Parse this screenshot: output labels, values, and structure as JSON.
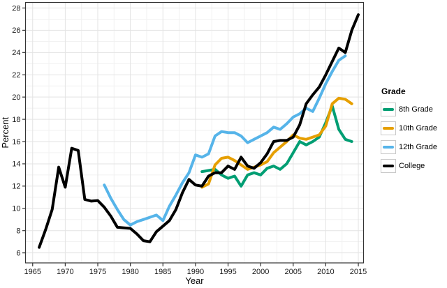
{
  "legend": {
    "title": "Grade",
    "items": [
      {
        "label": "8th Grade",
        "color": "#009E73"
      },
      {
        "label": "10th Grade",
        "color": "#E69F00"
      },
      {
        "label": "12th Grade",
        "color": "#56B4E9"
      },
      {
        "label": "College",
        "color": "#000000"
      }
    ]
  },
  "colors": {
    "grid_major": "#e3e3e3",
    "grid_minor": "#f1f1f1",
    "panel_border": "#333333",
    "tick": "#333333"
  },
  "chart_data": {
    "type": "line",
    "title": "",
    "xlabel": "Year",
    "ylabel": "Percent",
    "x_ticks": [
      1965,
      1970,
      1975,
      1980,
      1985,
      1990,
      1995,
      2000,
      2005,
      2010,
      2015
    ],
    "y_ticks": [
      6,
      8,
      10,
      12,
      14,
      16,
      18,
      20,
      22,
      24,
      26,
      28
    ],
    "xlim": [
      1963.9,
      2015.8
    ],
    "ylim": [
      5.1,
      28.5
    ],
    "grid": true,
    "legend_position": "right",
    "series": [
      {
        "name": "8th Grade",
        "color": "#009E73",
        "points": [
          [
            1991,
            13.3
          ],
          [
            1992,
            13.4
          ],
          [
            1993,
            13.5
          ],
          [
            1994,
            13.0
          ],
          [
            1995,
            12.7
          ],
          [
            1996,
            12.9
          ],
          [
            1997,
            12.0
          ],
          [
            1998,
            13.0
          ],
          [
            1999,
            13.2
          ],
          [
            2000,
            13.0
          ],
          [
            2001,
            13.6
          ],
          [
            2002,
            13.8
          ],
          [
            2003,
            13.5
          ],
          [
            2004,
            14.0
          ],
          [
            2005,
            15.0
          ],
          [
            2006,
            16.0
          ],
          [
            2007,
            15.7
          ],
          [
            2008,
            16.0
          ],
          [
            2009,
            16.4
          ],
          [
            2010,
            17.7
          ],
          [
            2011,
            19.2
          ],
          [
            2012,
            17.1
          ],
          [
            2013,
            16.2
          ],
          [
            2014,
            16.0
          ]
        ]
      },
      {
        "name": "10th Grade",
        "color": "#E69F00",
        "points": [
          [
            1991,
            11.9
          ],
          [
            1992,
            12.2
          ],
          [
            1993,
            13.9
          ],
          [
            1994,
            14.5
          ],
          [
            1995,
            14.6
          ],
          [
            1996,
            14.3
          ],
          [
            1997,
            13.9
          ],
          [
            1998,
            13.5
          ],
          [
            1999,
            13.7
          ],
          [
            2000,
            13.9
          ],
          [
            2001,
            14.2
          ],
          [
            2002,
            15.0
          ],
          [
            2003,
            15.5
          ],
          [
            2004,
            16.0
          ],
          [
            2005,
            16.6
          ],
          [
            2006,
            16.3
          ],
          [
            2007,
            16.2
          ],
          [
            2008,
            16.4
          ],
          [
            2009,
            16.6
          ],
          [
            2010,
            17.4
          ],
          [
            2011,
            19.4
          ],
          [
            2012,
            19.9
          ],
          [
            2013,
            19.8
          ],
          [
            2014,
            19.4
          ]
        ]
      },
      {
        "name": "12th Grade",
        "color": "#56B4E9",
        "points": [
          [
            1976,
            12.1
          ],
          [
            1977,
            10.9
          ],
          [
            1978,
            9.9
          ],
          [
            1979,
            9.0
          ],
          [
            1980,
            8.5
          ],
          [
            1981,
            8.8
          ],
          [
            1982,
            9.0
          ],
          [
            1983,
            9.2
          ],
          [
            1984,
            9.4
          ],
          [
            1985,
            8.9
          ],
          [
            1986,
            10.2
          ],
          [
            1987,
            11.2
          ],
          [
            1988,
            12.3
          ],
          [
            1989,
            13.2
          ],
          [
            1990,
            14.8
          ],
          [
            1991,
            14.6
          ],
          [
            1992,
            14.9
          ],
          [
            1993,
            16.5
          ],
          [
            1994,
            16.9
          ],
          [
            1995,
            16.8
          ],
          [
            1996,
            16.8
          ],
          [
            1997,
            16.5
          ],
          [
            1998,
            15.9
          ],
          [
            1999,
            16.2
          ],
          [
            2000,
            16.5
          ],
          [
            2001,
            16.8
          ],
          [
            2002,
            17.3
          ],
          [
            2003,
            17.1
          ],
          [
            2004,
            17.6
          ],
          [
            2005,
            18.2
          ],
          [
            2006,
            18.5
          ],
          [
            2007,
            19.0
          ],
          [
            2008,
            18.7
          ],
          [
            2009,
            19.9
          ],
          [
            2010,
            21.2
          ],
          [
            2011,
            22.3
          ],
          [
            2012,
            23.3
          ],
          [
            2013,
            23.7
          ]
        ]
      },
      {
        "name": "College",
        "color": "#000000",
        "points": [
          [
            1966,
            6.5
          ],
          [
            1967,
            8.1
          ],
          [
            1968,
            9.9
          ],
          [
            1969,
            13.7
          ],
          [
            1970,
            11.9
          ],
          [
            1971,
            15.4
          ],
          [
            1972,
            15.2
          ],
          [
            1973,
            10.8
          ],
          [
            1974,
            10.65
          ],
          [
            1975,
            10.7
          ],
          [
            1976,
            10.1
          ],
          [
            1977,
            9.3
          ],
          [
            1978,
            8.3
          ],
          [
            1979,
            8.25
          ],
          [
            1980,
            8.2
          ],
          [
            1981,
            7.7
          ],
          [
            1982,
            7.1
          ],
          [
            1983,
            7.0
          ],
          [
            1984,
            7.9
          ],
          [
            1985,
            8.4
          ],
          [
            1986,
            8.9
          ],
          [
            1987,
            9.9
          ],
          [
            1988,
            11.4
          ],
          [
            1989,
            12.6
          ],
          [
            1990,
            12.1
          ],
          [
            1991,
            12.0
          ],
          [
            1992,
            12.9
          ],
          [
            1993,
            13.2
          ],
          [
            1994,
            13.2
          ],
          [
            1995,
            13.8
          ],
          [
            1996,
            13.5
          ],
          [
            1997,
            14.6
          ],
          [
            1998,
            13.8
          ],
          [
            1999,
            13.6
          ],
          [
            2000,
            14.1
          ],
          [
            2001,
            14.9
          ],
          [
            2002,
            16.0
          ],
          [
            2003,
            16.1
          ],
          [
            2004,
            16.1
          ],
          [
            2005,
            16.4
          ],
          [
            2006,
            17.5
          ],
          [
            2007,
            19.4
          ],
          [
            2008,
            20.2
          ],
          [
            2009,
            20.9
          ],
          [
            2010,
            22.0
          ],
          [
            2011,
            23.2
          ],
          [
            2012,
            24.4
          ],
          [
            2013,
            24.0
          ],
          [
            2014,
            26.0
          ],
          [
            2015,
            27.4
          ]
        ]
      }
    ]
  }
}
